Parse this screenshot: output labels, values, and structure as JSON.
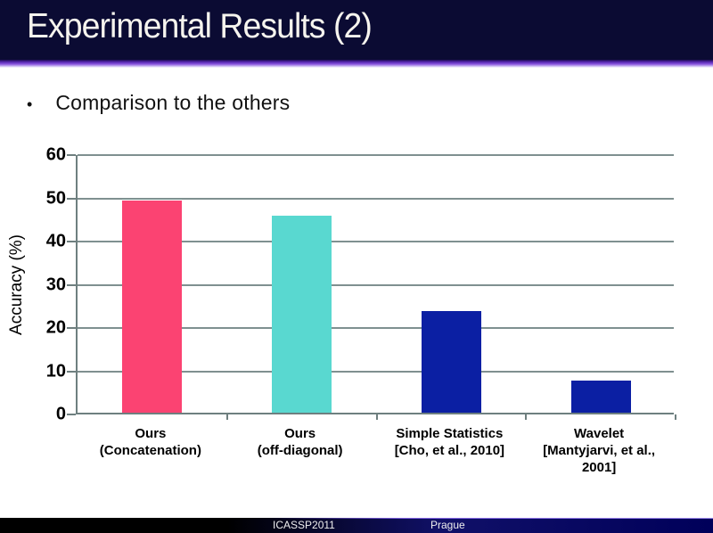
{
  "slide": {
    "title": "Experimental Results (2)",
    "bullet": "Comparison to the others",
    "footer": {
      "left": "ICASSP2011",
      "right": "Prague"
    }
  },
  "chart_data": {
    "type": "bar",
    "categories": [
      [
        "Ours",
        "(Concatenation)"
      ],
      [
        "Ours",
        "(off-diagonal)"
      ],
      [
        "Simple Statistics",
        "[Cho, et al., 2010]"
      ],
      [
        "Wavelet",
        "[Mantyjarvi, et al.,",
        "2001]"
      ]
    ],
    "values": [
      49,
      45.5,
      23.5,
      7.5
    ],
    "bar_colors": [
      "#fb4372",
      "#59d8d0",
      "#0b1fa3",
      "#0b1fa3"
    ],
    "title": "",
    "xlabel": "",
    "ylabel": "Accuracy (%)",
    "ylim": [
      0,
      60
    ],
    "yticks": [
      0,
      10,
      20,
      30,
      40,
      50,
      60
    ],
    "grid": true,
    "legend": false,
    "gridline_color": "#7f9090",
    "axis_color": "#6e7f7f"
  },
  "colors": {
    "titlebar_bg": "#0b0b33",
    "title_text": "#f6f4ee",
    "divider_purple": "#8a54dd",
    "footer_left_bg": "#000000",
    "footer_right_bg": "#00005a"
  }
}
